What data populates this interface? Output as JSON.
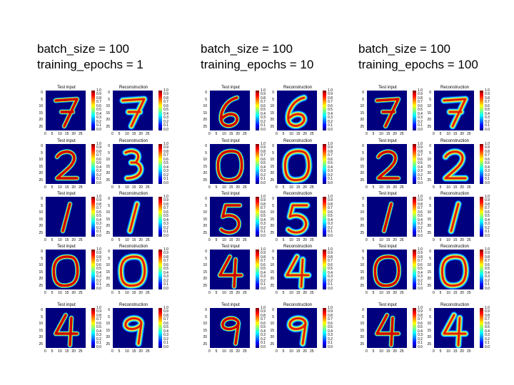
{
  "columns": [
    {
      "batch": "batch_size = 100",
      "epochs": "training_epochs = 1"
    },
    {
      "batch": "batch_size = 100",
      "epochs": "training_epochs = 10"
    },
    {
      "batch": "batch_size = 100",
      "epochs": "training_epochs = 100"
    }
  ],
  "titles": {
    "input": "Test input",
    "reconstruction": "Reconstruction"
  },
  "axis": {
    "y_ticks": [
      "0",
      "5",
      "10",
      "15",
      "20",
      "25"
    ],
    "x_ticks": [
      "0",
      "5",
      "10",
      "15",
      "20",
      "25"
    ]
  },
  "colorbar": {
    "ticks": [
      "1.0",
      "0.9",
      "0.8",
      "0.7",
      "0.6",
      "0.5",
      "0.4",
      "0.3",
      "0.2",
      "0.1",
      "0.0"
    ],
    "colormap": "jet",
    "colors": [
      "#800000",
      "#ff0000",
      "#ff8000",
      "#ffff00",
      "#80ff80",
      "#00ffff",
      "#0080ff",
      "#0000ff",
      "#00007f"
    ]
  },
  "digits": [
    [
      "7",
      "7",
      "6",
      "6",
      "7",
      "7"
    ],
    [
      "2",
      "3",
      "0",
      "0",
      "2",
      "2"
    ],
    [
      "1",
      "1",
      "5",
      "5",
      "1",
      "1"
    ],
    [
      "0",
      "0",
      "4",
      "4",
      "0",
      "0"
    ],
    [
      "4",
      "9",
      "9",
      "9",
      "4",
      "4"
    ]
  ]
}
